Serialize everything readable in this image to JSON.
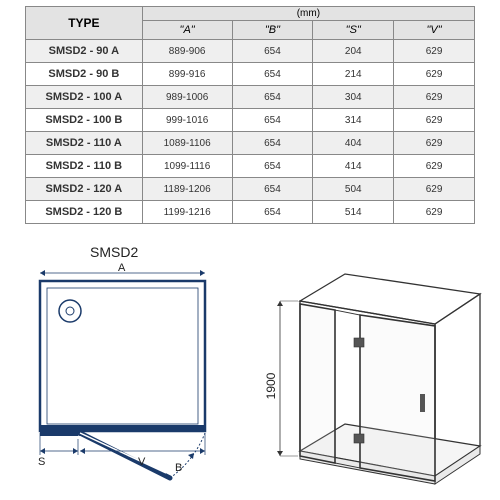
{
  "table": {
    "headers": {
      "type": "TYPE",
      "unit": "(mm)",
      "cols": [
        "\"A\"",
        "\"B\"",
        "\"S\"",
        "\"V\""
      ]
    },
    "rows": [
      {
        "type": "SMSD2 - 90 A",
        "a": "889-906",
        "b": "654",
        "s": "204",
        "v": "629"
      },
      {
        "type": "SMSD2 - 90 B",
        "a": "899-916",
        "b": "654",
        "s": "214",
        "v": "629"
      },
      {
        "type": "SMSD2 - 100 A",
        "a": "989-1006",
        "b": "654",
        "s": "304",
        "v": "629"
      },
      {
        "type": "SMSD2 - 100 B",
        "a": "999-1016",
        "b": "654",
        "s": "314",
        "v": "629"
      },
      {
        "type": "SMSD2 - 110 A",
        "a": "1089-1106",
        "b": "654",
        "s": "404",
        "v": "629"
      },
      {
        "type": "SMSD2 - 110 B",
        "a": "1099-1116",
        "b": "654",
        "s": "414",
        "v": "629"
      },
      {
        "type": "SMSD2 - 120 A",
        "a": "1189-1206",
        "b": "654",
        "s": "504",
        "v": "629"
      },
      {
        "type": "SMSD2 - 120 B",
        "a": "1199-1216",
        "b": "654",
        "s": "514",
        "v": "629"
      }
    ],
    "col_widths_pct": [
      26,
      20,
      18,
      18,
      18
    ],
    "header_bg": "#e3e3e3",
    "alt_bg": "#efefef",
    "border_color": "#888888"
  },
  "diagram": {
    "title": "SMSD2",
    "plan": {
      "stroke": "#1a3a6a",
      "label_A": "A",
      "label_B": "B",
      "label_S": "S",
      "label_V": "V"
    },
    "iso": {
      "stroke": "#333333",
      "height_label": "1900"
    }
  }
}
